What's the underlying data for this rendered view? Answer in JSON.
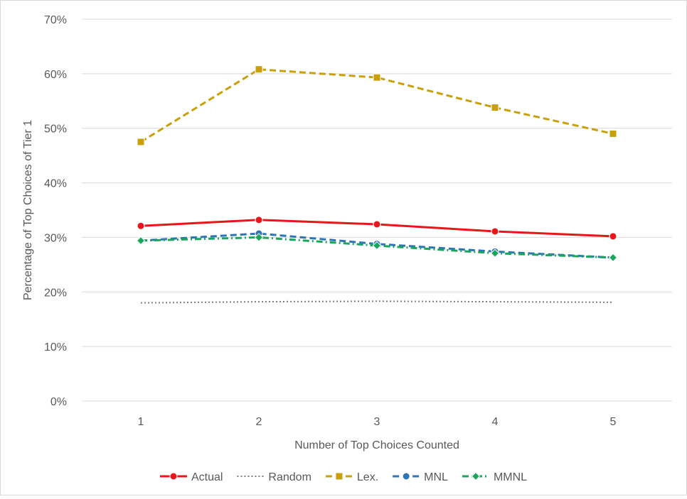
{
  "chart_data": {
    "type": "line",
    "title": "",
    "xlabel": "Number of Top Choices Counted",
    "ylabel": "Percentage of Top Choices of Tier 1",
    "categories": [
      "1",
      "2",
      "3",
      "4",
      "5"
    ],
    "ylim": [
      0,
      70
    ],
    "yticks": [
      "0%",
      "10%",
      "20%",
      "30%",
      "40%",
      "50%",
      "60%",
      "70%"
    ],
    "grid": true,
    "legend_position": "bottom",
    "series": [
      {
        "name": "Actual",
        "values": [
          32.1,
          33.2,
          32.4,
          31.1,
          30.2
        ],
        "color": "#e8161b",
        "dash": "solid",
        "marker": "circle"
      },
      {
        "name": "Random",
        "values": [
          18.0,
          18.2,
          18.3,
          18.2,
          18.1
        ],
        "color": "#7f7f7f",
        "dash": "dotted",
        "marker": "none"
      },
      {
        "name": "Lex.",
        "values": [
          47.5,
          60.8,
          59.3,
          53.8,
          49.0
        ],
        "color": "#c9a00a",
        "dash": "dashed",
        "marker": "square"
      },
      {
        "name": "MNL",
        "values": [
          29.4,
          30.7,
          28.8,
          27.4,
          26.3
        ],
        "color": "#2e75b6",
        "dash": "dashed",
        "marker": "circle"
      },
      {
        "name": "MMNL",
        "values": [
          29.4,
          30.0,
          28.5,
          27.1,
          26.3
        ],
        "color": "#1aa65a",
        "dash": "dashdot",
        "marker": "diamond"
      }
    ]
  }
}
